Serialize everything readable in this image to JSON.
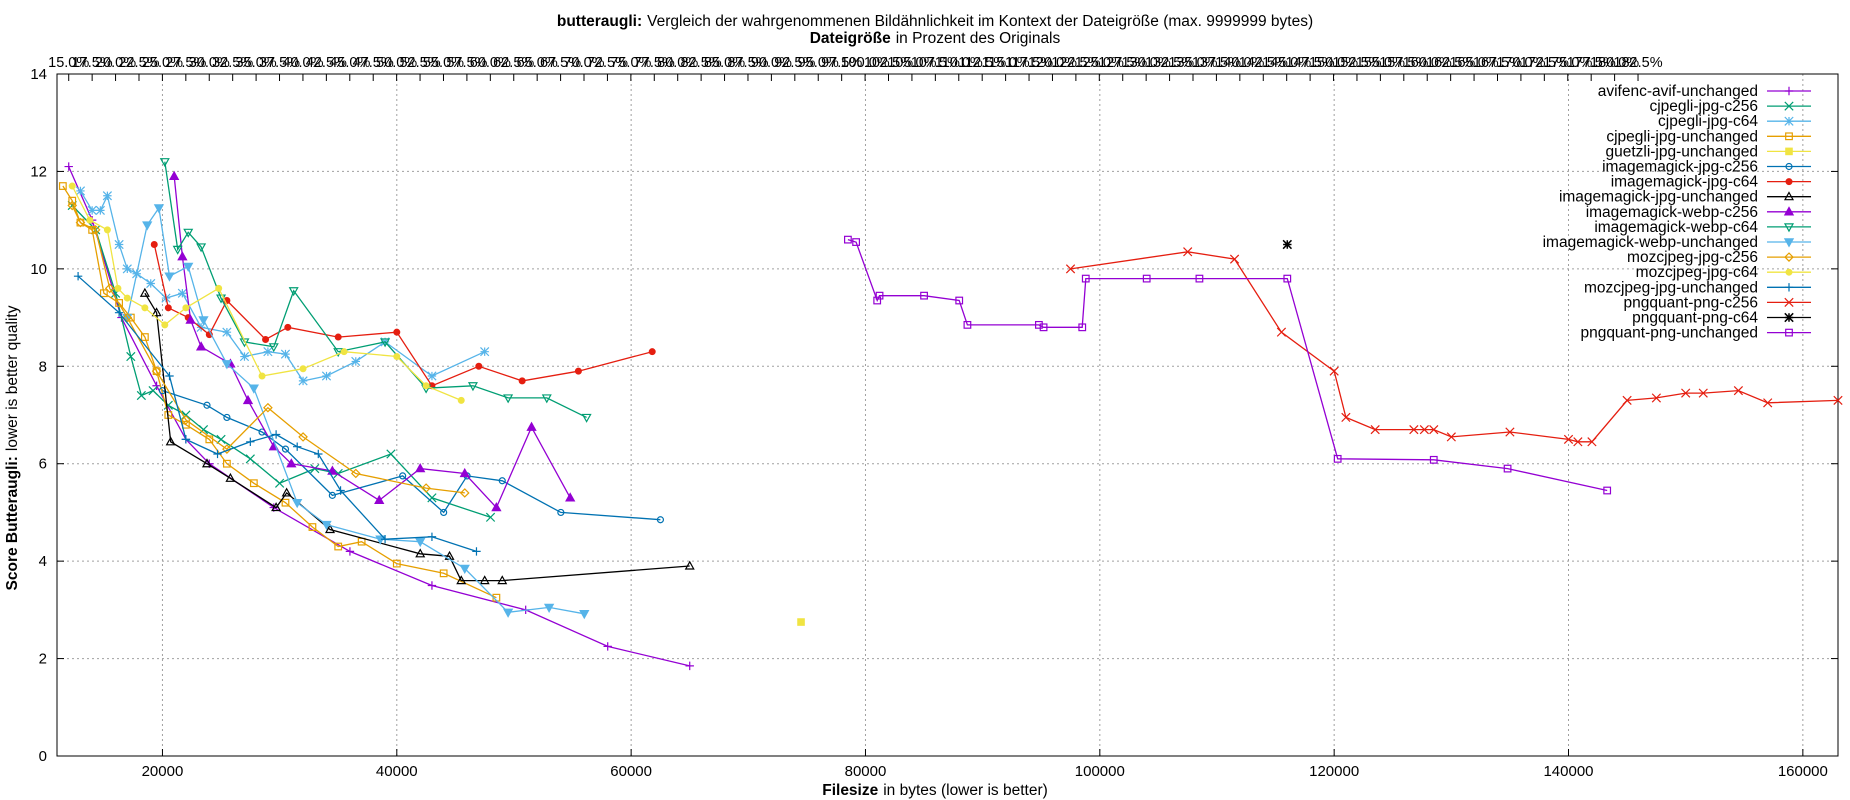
{
  "chart_data": {
    "type": "line",
    "title_bold": "butteraugli:",
    "title_rest": "Vergleich der wahrgenommenen Bildähnlichkeit im Kontext der Dateigröße (max. 9999999 bytes)",
    "subtitle_bold": "Dateigröße",
    "subtitle_rest": "in Prozent des Originals",
    "xlabel_bold": "Filesize",
    "xlabel_rest": "in bytes (lower is better)",
    "ylabel_bold": "Score Butteraugli:",
    "ylabel_rest": "lower is better quality",
    "xlim": [
      11000,
      163000
    ],
    "ylim": [
      0,
      14
    ],
    "x_ticks": [
      20000,
      40000,
      60000,
      80000,
      100000,
      120000,
      140000,
      160000
    ],
    "y_ticks": [
      0,
      2,
      4,
      6,
      8,
      10,
      12,
      14
    ],
    "x2_tick_labels": [
      "15.0%",
      "17.5%",
      "20.0%",
      "22.5%",
      "25.0%",
      "27.5%",
      "30.0%",
      "32.5%",
      "35.0%",
      "37.5%",
      "40.0%",
      "42.5%",
      "45.0%",
      "47.5%",
      "50.0%",
      "52.5%",
      "55.0%",
      "57.5%",
      "60.0%",
      "62.5%",
      "65.0%",
      "67.5%",
      "70.0%",
      "72.5%",
      "75.0%",
      "77.5%",
      "80.0%",
      "82.5%",
      "85.0%",
      "87.5%",
      "90.0%",
      "92.5%",
      "95.0%",
      "97.5%",
      "100.0%",
      "102.5%",
      "105.0%",
      "107.5%",
      "110.0%",
      "112.5%",
      "115.0%",
      "117.5%",
      "120.0%",
      "122.5%",
      "125.0%",
      "127.5%",
      "130.0%",
      "132.5%",
      "135.0%",
      "137.5%",
      "140.0%",
      "142.5%",
      "145.0%",
      "147.5%",
      "150.0%",
      "152.5%",
      "155.0%",
      "157.5%",
      "160.0%",
      "162.5%",
      "165.0%",
      "167.5%",
      "170.0%",
      "172.5%",
      "175.0%",
      "177.5%",
      "180.0%",
      "182.5%"
    ],
    "x2_first_x": 12000,
    "x2_step_x": 1999,
    "grid": true,
    "legend_position": "top-right",
    "series": [
      {
        "name": "avifenc-avif-unchanged",
        "color": "#9400d3",
        "marker": "plus",
        "points": [
          [
            12000,
            12.1
          ],
          [
            14000,
            11.0
          ],
          [
            16500,
            9.0
          ],
          [
            19500,
            7.6
          ],
          [
            22000,
            6.5
          ],
          [
            24000,
            6.0
          ],
          [
            29500,
            5.1
          ],
          [
            36000,
            4.2
          ],
          [
            43000,
            3.5
          ],
          [
            51000,
            3.0
          ],
          [
            58000,
            2.25
          ],
          [
            65000,
            1.85
          ]
        ]
      },
      {
        "name": "cjpegli-jpg-c256",
        "color": "#009e73",
        "marker": "x",
        "points": [
          [
            12300,
            11.3
          ],
          [
            14300,
            10.8
          ],
          [
            16000,
            9.5
          ],
          [
            17300,
            8.2
          ],
          [
            18200,
            7.4
          ],
          [
            19200,
            7.5
          ],
          [
            20500,
            7.2
          ],
          [
            22000,
            7.0
          ],
          [
            23500,
            6.7
          ],
          [
            25000,
            6.5
          ],
          [
            27500,
            6.1
          ],
          [
            30000,
            5.6
          ],
          [
            33000,
            5.9
          ],
          [
            35000,
            5.8
          ],
          [
            39500,
            6.2
          ],
          [
            43000,
            5.3
          ],
          [
            48000,
            4.9
          ]
        ]
      },
      {
        "name": "cjpegli-jpg-c64",
        "color": "#56b4e9",
        "marker": "star",
        "points": [
          [
            13000,
            11.6
          ],
          [
            14000,
            11.2
          ],
          [
            14700,
            11.2
          ],
          [
            15300,
            11.5
          ],
          [
            16300,
            10.5
          ],
          [
            17000,
            10.0
          ],
          [
            17800,
            9.9
          ],
          [
            19000,
            9.7
          ],
          [
            20300,
            9.4
          ],
          [
            21700,
            9.5
          ],
          [
            23300,
            8.8
          ],
          [
            25500,
            8.7
          ],
          [
            27000,
            8.2
          ],
          [
            29000,
            8.3
          ],
          [
            30500,
            8.25
          ],
          [
            32000,
            7.7
          ],
          [
            34000,
            7.8
          ],
          [
            36500,
            8.1
          ],
          [
            39000,
            8.5
          ],
          [
            43000,
            7.8
          ],
          [
            47500,
            8.3
          ]
        ]
      },
      {
        "name": "cjpegli-jpg-unchanged",
        "color": "#e69f00",
        "marker": "square",
        "points": [
          [
            11500,
            11.7
          ],
          [
            12300,
            11.4
          ],
          [
            13000,
            10.95
          ],
          [
            14000,
            10.8
          ],
          [
            15000,
            9.5
          ],
          [
            16300,
            9.3
          ],
          [
            17300,
            9.0
          ],
          [
            18500,
            8.6
          ],
          [
            19500,
            7.9
          ],
          [
            20500,
            7.0
          ],
          [
            22000,
            6.8
          ],
          [
            24000,
            6.5
          ],
          [
            25500,
            6.0
          ],
          [
            27800,
            5.6
          ],
          [
            30500,
            5.2
          ],
          [
            32800,
            4.7
          ],
          [
            35000,
            4.3
          ],
          [
            37000,
            4.4
          ],
          [
            40000,
            3.95
          ],
          [
            44000,
            3.75
          ],
          [
            48500,
            3.25
          ]
        ]
      },
      {
        "name": "guetzli-jpg-unchanged",
        "color": "#f0e442",
        "marker": "square-filled",
        "points": [
          [
            74500,
            2.75
          ]
        ]
      },
      {
        "name": "imagemagick-jpg-c256",
        "color": "#0072b2",
        "marker": "circle",
        "points": [
          [
            20000,
            7.5
          ],
          [
            23800,
            7.2
          ],
          [
            25500,
            6.95
          ],
          [
            28500,
            6.65
          ],
          [
            30500,
            6.3
          ],
          [
            34500,
            5.35
          ],
          [
            40500,
            5.75
          ],
          [
            44000,
            5.0
          ],
          [
            46000,
            5.75
          ],
          [
            49000,
            5.65
          ],
          [
            54000,
            5.0
          ],
          [
            62500,
            4.85
          ]
        ]
      },
      {
        "name": "imagemagick-jpg-c64",
        "color": "#e51e10",
        "marker": "dot",
        "points": [
          [
            19300,
            10.5
          ],
          [
            20500,
            9.2
          ],
          [
            22200,
            9.0
          ],
          [
            24000,
            8.65
          ],
          [
            25500,
            9.35
          ],
          [
            28800,
            8.55
          ],
          [
            30700,
            8.8
          ],
          [
            35000,
            8.6
          ],
          [
            40000,
            8.7
          ],
          [
            43000,
            7.6
          ],
          [
            47000,
            8.0
          ],
          [
            50700,
            7.7
          ],
          [
            55500,
            7.9
          ],
          [
            61800,
            8.3
          ]
        ]
      },
      {
        "name": "imagemagick-jpg-unchanged",
        "color": "#000000",
        "marker": "triangle",
        "points": [
          [
            18500,
            9.5
          ],
          [
            19500,
            9.1
          ],
          [
            20700,
            6.45
          ],
          [
            23800,
            6.0
          ],
          [
            25800,
            5.7
          ],
          [
            29700,
            5.1
          ],
          [
            30600,
            5.4
          ],
          [
            34300,
            4.65
          ],
          [
            42000,
            4.15
          ],
          [
            44500,
            4.1
          ],
          [
            45500,
            3.6
          ],
          [
            47500,
            3.6
          ],
          [
            49000,
            3.6
          ],
          [
            65000,
            3.9
          ]
        ]
      },
      {
        "name": "imagemagick-webp-c256",
        "color": "#9400d3",
        "marker": "triangle-filled",
        "points": [
          [
            21000,
            11.9
          ],
          [
            21700,
            10.25
          ],
          [
            22400,
            8.95
          ],
          [
            23300,
            8.4
          ],
          [
            25800,
            8.05
          ],
          [
            27300,
            7.3
          ],
          [
            29500,
            6.35
          ],
          [
            31000,
            6.0
          ],
          [
            34500,
            5.85
          ],
          [
            38500,
            5.25
          ],
          [
            42000,
            5.9
          ],
          [
            45800,
            5.8
          ],
          [
            48500,
            5.1
          ],
          [
            51500,
            6.75
          ],
          [
            54800,
            5.3
          ]
        ]
      },
      {
        "name": "imagemagick-webp-c64",
        "color": "#009e73",
        "marker": "triangle-down",
        "points": [
          [
            20200,
            12.2
          ],
          [
            21300,
            10.4
          ],
          [
            22200,
            10.75
          ],
          [
            23300,
            10.45
          ],
          [
            25000,
            9.4
          ],
          [
            27000,
            8.5
          ],
          [
            29500,
            8.4
          ],
          [
            31200,
            9.55
          ],
          [
            35000,
            8.3
          ],
          [
            39000,
            8.5
          ],
          [
            42500,
            7.55
          ],
          [
            46500,
            7.6
          ],
          [
            49500,
            7.35
          ],
          [
            52800,
            7.35
          ],
          [
            56200,
            6.95
          ]
        ]
      },
      {
        "name": "imagemagick-webp-unchanged",
        "color": "#56b4e9",
        "marker": "triangle-down-filled",
        "points": [
          [
            17000,
            9.0
          ],
          [
            18700,
            10.9
          ],
          [
            19700,
            11.25
          ],
          [
            20600,
            9.85
          ],
          [
            22200,
            10.05
          ],
          [
            23500,
            8.95
          ],
          [
            25500,
            8.05
          ],
          [
            27800,
            7.55
          ],
          [
            31500,
            5.2
          ],
          [
            34000,
            4.75
          ],
          [
            38600,
            4.45
          ],
          [
            42000,
            4.4
          ],
          [
            45800,
            3.85
          ],
          [
            49500,
            2.95
          ],
          [
            53000,
            3.05
          ],
          [
            56000,
            2.92
          ]
        ]
      },
      {
        "name": "mozcjpeg-jpg-c256",
        "color": "#e69f00",
        "marker": "diamond",
        "points": [
          [
            12300,
            11.3
          ],
          [
            13000,
            10.95
          ],
          [
            14300,
            10.8
          ],
          [
            15500,
            9.6
          ],
          [
            17000,
            9.0
          ],
          [
            19500,
            7.9
          ],
          [
            22000,
            6.9
          ],
          [
            25500,
            6.3
          ],
          [
            29000,
            7.15
          ],
          [
            32000,
            6.55
          ],
          [
            36500,
            5.8
          ],
          [
            42500,
            5.5
          ],
          [
            45800,
            5.4
          ]
        ]
      },
      {
        "name": "mozcjpeg-jpg-c64",
        "color": "#f0e442",
        "marker": "dot",
        "points": [
          [
            12300,
            11.7
          ],
          [
            13800,
            11.0
          ],
          [
            15300,
            10.8
          ],
          [
            16200,
            9.6
          ],
          [
            17000,
            9.4
          ],
          [
            18500,
            9.2
          ],
          [
            20200,
            8.85
          ],
          [
            22000,
            9.2
          ],
          [
            24800,
            9.6
          ],
          [
            28500,
            7.8
          ],
          [
            32000,
            7.95
          ],
          [
            35500,
            8.3
          ],
          [
            40000,
            8.2
          ],
          [
            42500,
            7.6
          ],
          [
            45500,
            7.3
          ]
        ]
      },
      {
        "name": "mozcjpeg-jpg-unchanged",
        "color": "#0072b2",
        "marker": "plus",
        "points": [
          [
            12800,
            9.85
          ],
          [
            16300,
            9.1
          ],
          [
            20600,
            7.8
          ],
          [
            22000,
            6.5
          ],
          [
            24700,
            6.2
          ],
          [
            27500,
            6.45
          ],
          [
            29700,
            6.6
          ],
          [
            31500,
            6.35
          ],
          [
            33300,
            6.2
          ],
          [
            35200,
            5.45
          ],
          [
            39000,
            4.45
          ],
          [
            43000,
            4.5
          ],
          [
            46800,
            4.2
          ]
        ]
      },
      {
        "name": "pngquant-png-c256",
        "color": "#e51e10",
        "marker": "x",
        "points": [
          [
            97500,
            10.0
          ],
          [
            107500,
            10.35
          ],
          [
            111500,
            10.2
          ],
          [
            115500,
            8.7
          ],
          [
            120000,
            7.9
          ],
          [
            121000,
            6.95
          ],
          [
            123500,
            6.7
          ],
          [
            126800,
            6.7
          ],
          [
            127700,
            6.7
          ],
          [
            128500,
            6.7
          ],
          [
            130000,
            6.55
          ],
          [
            135000,
            6.65
          ],
          [
            140000,
            6.5
          ],
          [
            140800,
            6.45
          ],
          [
            142000,
            6.45
          ],
          [
            145000,
            7.3
          ],
          [
            147500,
            7.35
          ],
          [
            150000,
            7.45
          ],
          [
            151500,
            7.45
          ],
          [
            154500,
            7.5
          ],
          [
            157000,
            7.25
          ],
          [
            163000,
            7.3
          ]
        ]
      },
      {
        "name": "pngquant-png-c64",
        "color": "#000000",
        "marker": "asterisk",
        "points": [
          [
            116000,
            10.5
          ]
        ]
      },
      {
        "name": "pngquant-png-unchanged",
        "color": "#9400d3",
        "marker": "square",
        "points": [
          [
            78500,
            10.6
          ],
          [
            79200,
            10.55
          ],
          [
            81000,
            9.35
          ],
          [
            81200,
            9.45
          ],
          [
            85000,
            9.45
          ],
          [
            88000,
            9.35
          ],
          [
            88700,
            8.85
          ],
          [
            94800,
            8.85
          ],
          [
            95200,
            8.8
          ],
          [
            98500,
            8.8
          ],
          [
            98800,
            9.8
          ],
          [
            104000,
            9.8
          ],
          [
            108500,
            9.8
          ],
          [
            116000,
            9.8
          ],
          [
            120300,
            6.1
          ],
          [
            128500,
            6.08
          ],
          [
            134800,
            5.9
          ],
          [
            143300,
            5.45
          ]
        ]
      }
    ]
  }
}
